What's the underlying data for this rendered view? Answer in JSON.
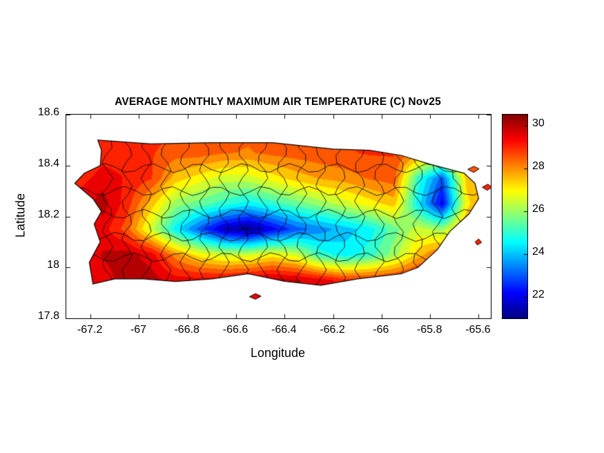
{
  "colors": {
    "background": "#ffffff",
    "text": "#000000",
    "axis": "#000000"
  },
  "chart_data": {
    "type": "heatmap",
    "title": "AVERAGE MONTHLY MAXIMUM AIR TEMPERATURE (C) Nov25",
    "xlabel": "Longitude",
    "ylabel": "Latitude",
    "units": "C",
    "period": "Nov25",
    "xlim": [
      -67.3,
      -65.55
    ],
    "ylim": [
      17.8,
      18.6
    ],
    "xticks": [
      -67.2,
      -67,
      -66.8,
      -66.6,
      -66.4,
      -66.2,
      -66,
      -65.8,
      -65.6
    ],
    "xtick_labels": [
      "-67.2",
      "-67",
      "-66.8",
      "-66.6",
      "-66.4",
      "-66.2",
      "-66",
      "-65.8",
      "-65.6"
    ],
    "yticks": [
      17.8,
      18,
      18.2,
      18.4,
      18.6
    ],
    "ytick_labels": [
      "17.8",
      "18",
      "18.2",
      "18.4",
      "18.6"
    ],
    "colormap": "jet",
    "clim": [
      21,
      30.5
    ],
    "colorbar_ticks": [
      22,
      24,
      26,
      28,
      30
    ],
    "colorbar_tick_labels": [
      "22",
      "24",
      "26",
      "28",
      "30"
    ],
    "grid": {
      "lons": [
        -67.25,
        -67.15,
        -67.05,
        -66.95,
        -66.85,
        -66.75,
        -66.65,
        -66.55,
        -66.45,
        -66.35,
        -66.25,
        -66.15,
        -66.05,
        -65.95,
        -65.85,
        -65.75,
        -65.65,
        -65.55
      ],
      "lats": [
        17.95,
        18.05,
        18.15,
        18.25,
        18.35,
        18.45,
        18.55
      ],
      "values_by_lat_row": [
        [
          29,
          29.5,
          30,
          30,
          29.5,
          29.5,
          29.5,
          29.8,
          30,
          29.8,
          29.5,
          29,
          29,
          29.2,
          29.5,
          29.5,
          29,
          29
        ],
        [
          29,
          29.8,
          30,
          29.5,
          28,
          27,
          26.5,
          26.5,
          27,
          26.5,
          25,
          24.5,
          25,
          26,
          27.5,
          28.5,
          29,
          29
        ],
        [
          29,
          29.5,
          28.5,
          26.5,
          24.5,
          23,
          21.5,
          21,
          22,
          23,
          23.5,
          24,
          24.5,
          25.5,
          26.5,
          26,
          28,
          28.5
        ],
        [
          29.5,
          30,
          29,
          27.5,
          26,
          25.5,
          25,
          24.5,
          25,
          25.5,
          26,
          26.5,
          27,
          27.5,
          24.5,
          22,
          27,
          28.5
        ],
        [
          29,
          29.5,
          29.2,
          28.8,
          27.5,
          27,
          26.5,
          26.5,
          27,
          27.5,
          27.8,
          28,
          28.3,
          28.5,
          25,
          23,
          27.5,
          28.5
        ],
        [
          28.5,
          29,
          29,
          28.8,
          28.5,
          28.5,
          28.3,
          28.2,
          28.4,
          28.5,
          28.6,
          28.7,
          28.8,
          28.8,
          28.2,
          27.5,
          28.5,
          28.8
        ],
        [
          28.5,
          28.8,
          29,
          29,
          28.8,
          28.6,
          28.5,
          28.4,
          28.5,
          28.6,
          28.7,
          28.8,
          28.8,
          28.7,
          28,
          27.8,
          28.5,
          28.8
        ]
      ]
    },
    "island_outline": [
      [
        -67.17,
        18.5
      ],
      [
        -66.95,
        18.485
      ],
      [
        -66.7,
        18.49
      ],
      [
        -66.45,
        18.49
      ],
      [
        -66.2,
        18.465
      ],
      [
        -66.05,
        18.46
      ],
      [
        -65.92,
        18.44
      ],
      [
        -65.8,
        18.405
      ],
      [
        -65.66,
        18.37
      ],
      [
        -65.615,
        18.33
      ],
      [
        -65.6,
        18.27
      ],
      [
        -65.64,
        18.21
      ],
      [
        -65.72,
        18.14
      ],
      [
        -65.77,
        18.07
      ],
      [
        -65.85,
        18.0
      ],
      [
        -65.92,
        17.975
      ],
      [
        -66.1,
        17.955
      ],
      [
        -66.25,
        17.93
      ],
      [
        -66.4,
        17.945
      ],
      [
        -66.55,
        17.975
      ],
      [
        -66.7,
        17.955
      ],
      [
        -66.85,
        17.945
      ],
      [
        -66.98,
        17.955
      ],
      [
        -67.1,
        17.955
      ],
      [
        -67.19,
        17.935
      ],
      [
        -67.205,
        18.02
      ],
      [
        -67.16,
        18.1
      ],
      [
        -67.185,
        18.17
      ],
      [
        -67.155,
        18.22
      ],
      [
        -67.19,
        18.27
      ],
      [
        -67.265,
        18.33
      ],
      [
        -67.225,
        18.37
      ],
      [
        -67.16,
        18.4
      ],
      [
        -67.155,
        18.46
      ]
    ],
    "islets": [
      {
        "points": [
          [
            -66.545,
            17.885
          ],
          [
            -66.52,
            17.897
          ],
          [
            -66.497,
            17.887
          ],
          [
            -66.52,
            17.875
          ]
        ],
        "temp": 29.5
      },
      {
        "points": [
          [
            -65.645,
            18.385
          ],
          [
            -65.62,
            18.397
          ],
          [
            -65.598,
            18.387
          ],
          [
            -65.62,
            18.373
          ]
        ],
        "temp": 28.5
      },
      {
        "points": [
          [
            -65.585,
            18.315
          ],
          [
            -65.562,
            18.327
          ],
          [
            -65.545,
            18.315
          ],
          [
            -65.565,
            18.303
          ]
        ],
        "temp": 29
      },
      {
        "points": [
          [
            -65.615,
            18.1
          ],
          [
            -65.6,
            18.112
          ],
          [
            -65.588,
            18.098
          ],
          [
            -65.605,
            18.088
          ]
        ],
        "temp": 29
      }
    ],
    "municipality_boundaries": {
      "vertical_lons": [
        -67.13,
        -67.05,
        -66.97,
        -66.89,
        -66.81,
        -66.73,
        -66.65,
        -66.57,
        -66.49,
        -66.41,
        -66.33,
        -66.25,
        -66.17,
        -66.09,
        -66.01,
        -65.93,
        -65.85,
        -65.77,
        -65.69
      ],
      "horizontal_lats": [
        18.04,
        18.12,
        18.21,
        18.3,
        18.39
      ]
    }
  }
}
